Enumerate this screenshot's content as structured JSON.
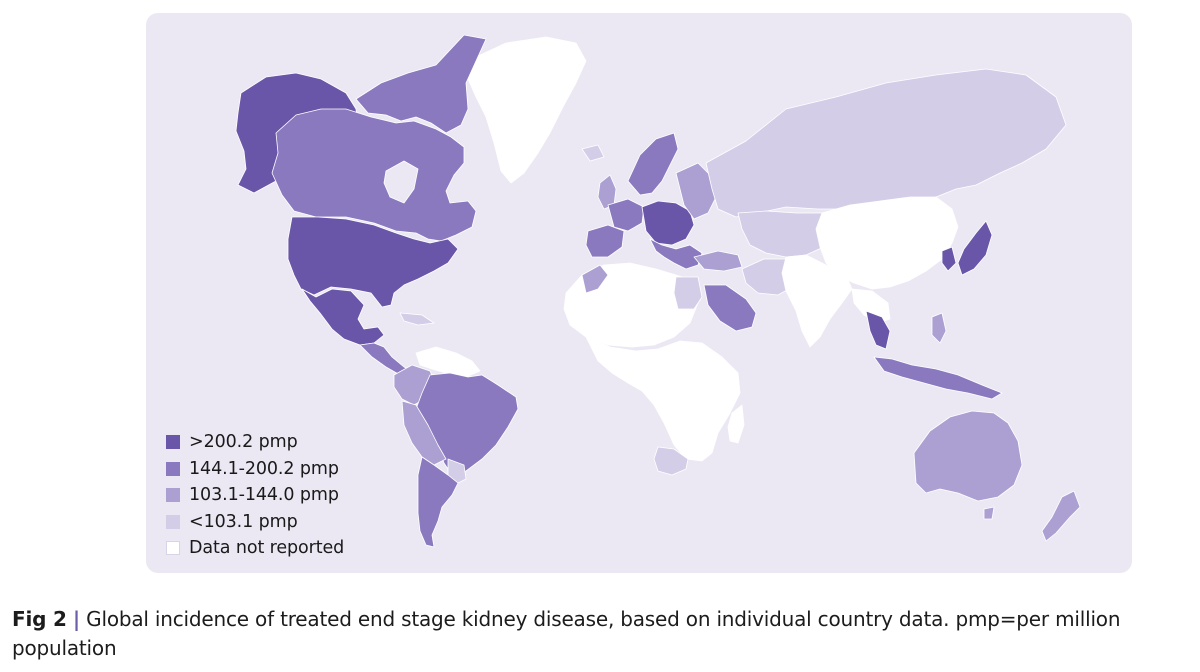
{
  "colors": {
    "panel_background": "#ebe8f4",
    "ocean": "#ebe8f4",
    "border": "#ffffff",
    "level_1": "#6a56a8",
    "level_2": "#8a79bf",
    "level_3": "#aca0d3",
    "level_4": "#d3cde8",
    "no_data": "#ffffff"
  },
  "legend": [
    {
      "label": ">200.2 pmp",
      "color": "#6a56a8"
    },
    {
      "label": "144.1-200.2 pmp",
      "color": "#8a79bf"
    },
    {
      "label": "103.1-144.0 pmp",
      "color": "#aca0d3"
    },
    {
      "label": "<103.1 pmp",
      "color": "#d3cde8"
    },
    {
      "label": "Data not reported",
      "color": "#ffffff"
    }
  ],
  "caption": {
    "prefix": "Fig 2",
    "separator": "|",
    "text": "Global incidence of treated end stage kidney disease, based on individual country data. pmp=per million population"
  },
  "regions": [
    {
      "name": "Alaska",
      "class": "level_1"
    },
    {
      "name": "Canada",
      "class": "level_2"
    },
    {
      "name": "Greenland",
      "class": "no_data"
    },
    {
      "name": "United States",
      "class": "level_1"
    },
    {
      "name": "Mexico",
      "class": "level_1"
    },
    {
      "name": "Central America",
      "class": "level_2"
    },
    {
      "name": "Venezuela",
      "class": "no_data"
    },
    {
      "name": "Colombia",
      "class": "level_3"
    },
    {
      "name": "Brazil",
      "class": "level_2"
    },
    {
      "name": "Peru and Bolivia",
      "class": "level_3"
    },
    {
      "name": "Argentina and Chile",
      "class": "level_2"
    },
    {
      "name": "Western Europe",
      "class": "level_2"
    },
    {
      "name": "Central Europe",
      "class": "level_1"
    },
    {
      "name": "Russia",
      "class": "level_4"
    },
    {
      "name": "Africa",
      "class": "no_data"
    },
    {
      "name": "South Africa",
      "class": "level_4"
    },
    {
      "name": "Saudi Arabia",
      "class": "level_2"
    },
    {
      "name": "China",
      "class": "no_data"
    },
    {
      "name": "India",
      "class": "no_data"
    },
    {
      "name": "Japan",
      "class": "level_1"
    },
    {
      "name": "Thailand",
      "class": "level_1"
    },
    {
      "name": "Australia",
      "class": "level_3"
    },
    {
      "name": "New Zealand",
      "class": "level_3"
    }
  ]
}
